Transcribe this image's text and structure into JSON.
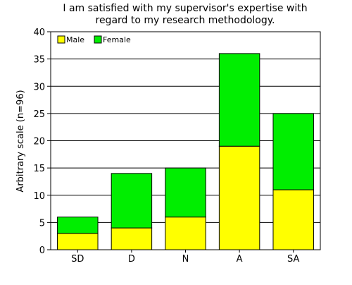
{
  "chart_data": {
    "type": "bar",
    "stacked": true,
    "title_lines": [
      "I am satisfied with my supervisor's expertise with",
      "regard to my research methodology."
    ],
    "xlabel": "",
    "ylabel": "Arbitrary scale (n=96)",
    "categories": [
      "SD",
      "D",
      "N",
      "A",
      "SA"
    ],
    "series": [
      {
        "name": "Male",
        "color": "#ffff00",
        "values": [
          3,
          4,
          6,
          19,
          11
        ]
      },
      {
        "name": "Female",
        "color": "#00ee00",
        "values": [
          3,
          10,
          9,
          17,
          14
        ]
      }
    ],
    "ylim": [
      0,
      40
    ],
    "yticks": [
      0,
      5,
      10,
      15,
      20,
      25,
      30,
      35,
      40
    ],
    "grid": true,
    "legend_position": "top-left"
  }
}
